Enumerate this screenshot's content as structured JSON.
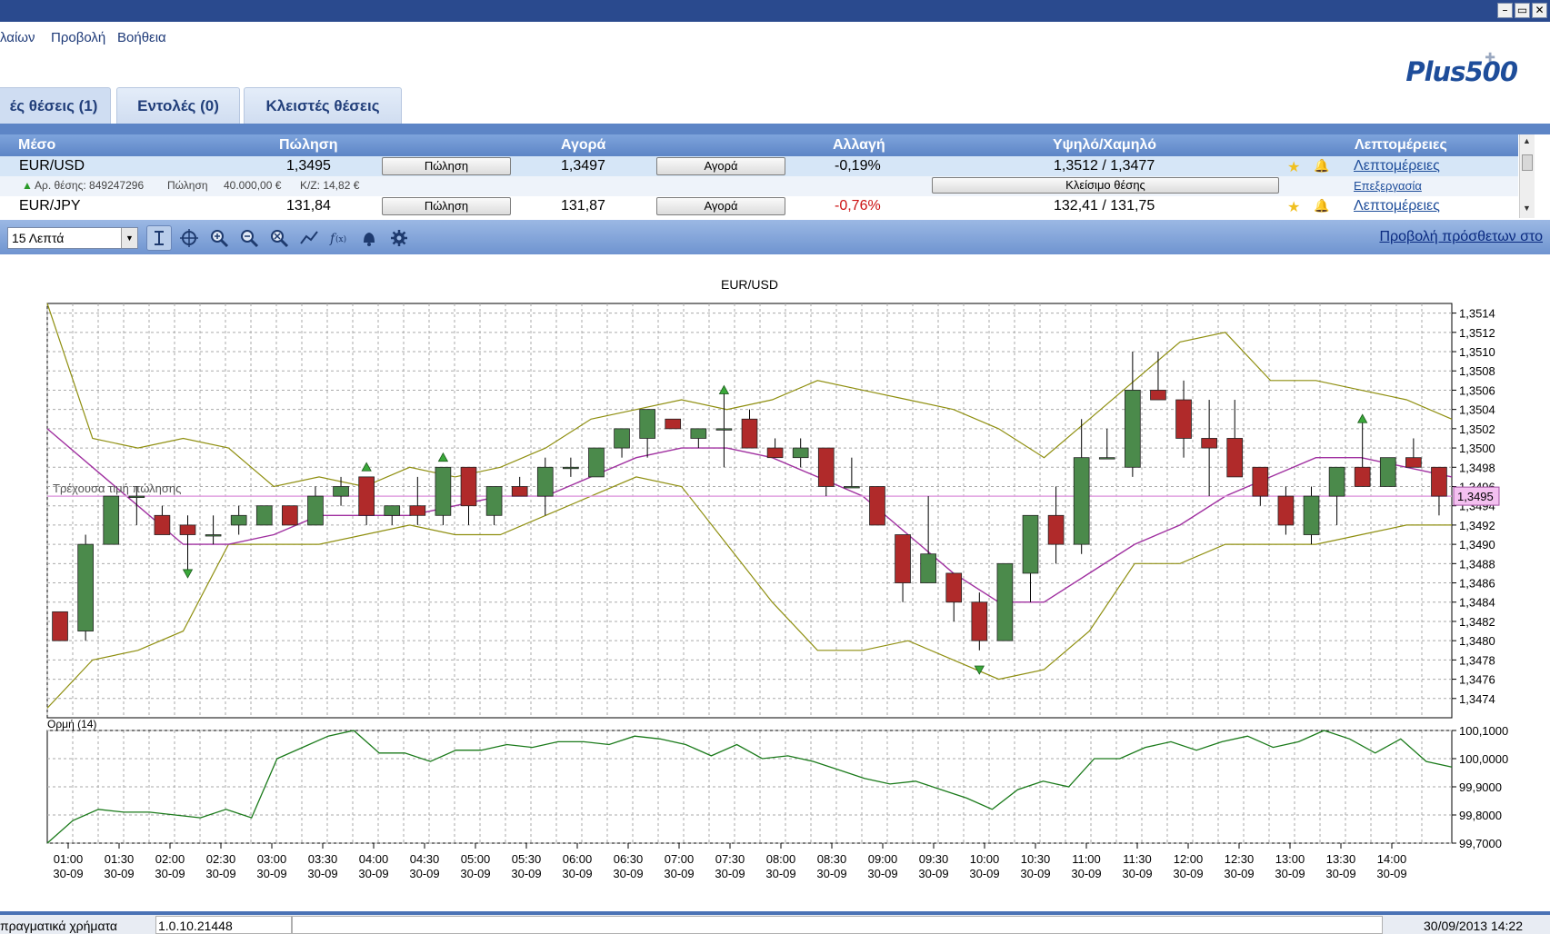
{
  "window": {
    "minimize": "–",
    "restore": "▭",
    "close": "✕"
  },
  "menu": {
    "items": [
      "λαίων",
      "Προβολή",
      "Βοήθεια"
    ]
  },
  "logo": {
    "text": "Plus500",
    "cross": "✚"
  },
  "tabs": [
    {
      "label": "ές θέσεις (1)"
    },
    {
      "label": "Εντολές (0)"
    },
    {
      "label": "Κλειστές θέσεις"
    }
  ],
  "grid": {
    "headers": [
      "Μέσο",
      "Πώληση",
      "Αγορά",
      "Αλλαγή",
      "Υψηλό/Χαμηλό",
      "Λεπτομέρειες"
    ],
    "rows": [
      {
        "instrument": "EUR/USD",
        "sell": "1,3495",
        "sell_btn": "Πώληση",
        "buy": "1,3497",
        "buy_btn": "Αγορά",
        "change": "-0,19%",
        "highlow": "1,3512 / 1,3477",
        "details": "Λεπτομέρειες"
      },
      {
        "instrument": "EUR/JPY",
        "sell": "131,84",
        "sell_btn": "Πώληση",
        "buy": "131,87",
        "buy_btn": "Αγορά",
        "change": "-0,76%",
        "highlow": "132,41 / 131,75",
        "details": "Λεπτομέρειες"
      }
    ],
    "position": {
      "id_label": "Αρ. θέσης: 849247296",
      "side": "Πώληση",
      "amount": "40.000,00 €",
      "pnl": "Κ/Ζ: 14,82 €",
      "close_btn": "Κλείσιμο θέσης",
      "edit_link": "Επεξεργασία"
    },
    "change_color": "#cc1111"
  },
  "toolbar": {
    "timeframe": "15 Λεπτά",
    "link": "Προβολή πρόσθετων στο",
    "icons": [
      "cursor-icon",
      "crosshair-icon",
      "zoom-in-icon",
      "zoom-out-icon",
      "zoom-reset-icon",
      "line-chart-icon",
      "function-icon",
      "alert-bell-icon",
      "settings-gear-icon"
    ]
  },
  "chart_data": [
    {
      "type": "candlestick",
      "title": "EUR/USD",
      "current_price_label": "Τρέχουσα τιμή πώλησης",
      "current_price": "1,3495",
      "x_ticks": [
        [
          "01:00",
          "30-09"
        ],
        [
          "01:30",
          "30-09"
        ],
        [
          "02:00",
          "30-09"
        ],
        [
          "02:30",
          "30-09"
        ],
        [
          "03:00",
          "30-09"
        ],
        [
          "03:30",
          "30-09"
        ],
        [
          "04:00",
          "30-09"
        ],
        [
          "04:30",
          "30-09"
        ],
        [
          "05:00",
          "30-09"
        ],
        [
          "05:30",
          "30-09"
        ],
        [
          "06:00",
          "30-09"
        ],
        [
          "06:30",
          "30-09"
        ],
        [
          "07:00",
          "30-09"
        ],
        [
          "07:30",
          "30-09"
        ],
        [
          "08:00",
          "30-09"
        ],
        [
          "08:30",
          "30-09"
        ],
        [
          "09:00",
          "30-09"
        ],
        [
          "09:30",
          "30-09"
        ],
        [
          "10:00",
          "30-09"
        ],
        [
          "10:30",
          "30-09"
        ],
        [
          "11:00",
          "30-09"
        ],
        [
          "11:30",
          "30-09"
        ],
        [
          "12:00",
          "30-09"
        ],
        [
          "12:30",
          "30-09"
        ],
        [
          "13:00",
          "30-09"
        ],
        [
          "13:30",
          "30-09"
        ],
        [
          "14:00",
          "30-09"
        ]
      ],
      "y_ticks": [
        "1,3474",
        "1,3476",
        "1,3478",
        "1,3480",
        "1,3482",
        "1,3484",
        "1,3486",
        "1,3488",
        "1,3490",
        "1,3492",
        "1,3494",
        "1,3496",
        "1,3498",
        "1,3500",
        "1,3502",
        "1,3504",
        "1,3506",
        "1,3508",
        "1,3510",
        "1,3512",
        "1,3514"
      ],
      "ylim": [
        1.3472,
        1.3515
      ],
      "candles": [
        [
          1.3483,
          1.3483,
          1.348,
          1.348
        ],
        [
          1.3481,
          1.3491,
          1.348,
          1.349
        ],
        [
          1.349,
          1.3495,
          1.349,
          1.3495
        ],
        [
          1.3495,
          1.3496,
          1.3492,
          1.3495
        ],
        [
          1.3493,
          1.3494,
          1.3491,
          1.3491
        ],
        [
          1.3492,
          1.3493,
          1.3487,
          1.3491
        ],
        [
          1.3491,
          1.3493,
          1.349,
          1.3491
        ],
        [
          1.3492,
          1.3494,
          1.3491,
          1.3493
        ],
        [
          1.3492,
          1.3494,
          1.3492,
          1.3494
        ],
        [
          1.3494,
          1.3494,
          1.3492,
          1.3492
        ],
        [
          1.3492,
          1.3496,
          1.3492,
          1.3495
        ],
        [
          1.3495,
          1.3497,
          1.3494,
          1.3496
        ],
        [
          1.3497,
          1.3497,
          1.3492,
          1.3493
        ],
        [
          1.3493,
          1.3494,
          1.3492,
          1.3494
        ],
        [
          1.3494,
          1.3497,
          1.3492,
          1.3493
        ],
        [
          1.3493,
          1.3498,
          1.3492,
          1.3498
        ],
        [
          1.3498,
          1.3498,
          1.3492,
          1.3494
        ],
        [
          1.3493,
          1.3496,
          1.3492,
          1.3496
        ],
        [
          1.3496,
          1.3497,
          1.3495,
          1.3495
        ],
        [
          1.3495,
          1.3499,
          1.3493,
          1.3498
        ],
        [
          1.3498,
          1.3499,
          1.3497,
          1.3498
        ],
        [
          1.3497,
          1.35,
          1.3497,
          1.35
        ],
        [
          1.35,
          1.3502,
          1.3499,
          1.3502
        ],
        [
          1.3501,
          1.3504,
          1.3499,
          1.3504
        ],
        [
          1.3503,
          1.3503,
          1.3502,
          1.3502
        ],
        [
          1.3501,
          1.3502,
          1.35,
          1.3502
        ],
        [
          1.3502,
          1.3506,
          1.3498,
          1.3502
        ],
        [
          1.3503,
          1.3504,
          1.35,
          1.35
        ],
        [
          1.35,
          1.3501,
          1.3499,
          1.3499
        ],
        [
          1.3499,
          1.3501,
          1.3498,
          1.35
        ],
        [
          1.35,
          1.35,
          1.3495,
          1.3496
        ],
        [
          1.3496,
          1.3499,
          1.3496,
          1.3496
        ],
        [
          1.3496,
          1.3496,
          1.3492,
          1.3492
        ],
        [
          1.3491,
          1.3491,
          1.3484,
          1.3486
        ],
        [
          1.3486,
          1.3495,
          1.3486,
          1.3489
        ],
        [
          1.3487,
          1.3487,
          1.3482,
          1.3484
        ],
        [
          1.3484,
          1.3485,
          1.3479,
          1.348
        ],
        [
          1.348,
          1.3488,
          1.348,
          1.3488
        ],
        [
          1.3487,
          1.3493,
          1.3484,
          1.3493
        ],
        [
          1.3493,
          1.3496,
          1.3488,
          1.349
        ],
        [
          1.349,
          1.3503,
          1.3489,
          1.3499
        ],
        [
          1.3499,
          1.3502,
          1.3499,
          1.3499
        ],
        [
          1.3498,
          1.351,
          1.3497,
          1.3506
        ],
        [
          1.3506,
          1.351,
          1.3505,
          1.3505
        ],
        [
          1.3505,
          1.3507,
          1.3499,
          1.3501
        ],
        [
          1.3501,
          1.3505,
          1.3495,
          1.35
        ],
        [
          1.3501,
          1.3505,
          1.3497,
          1.3497
        ],
        [
          1.3498,
          1.3498,
          1.3494,
          1.3495
        ],
        [
          1.3495,
          1.3496,
          1.3491,
          1.3492
        ],
        [
          1.3491,
          1.3496,
          1.349,
          1.3495
        ],
        [
          1.3495,
          1.3498,
          1.3492,
          1.3498
        ],
        [
          1.3498,
          1.3503,
          1.3496,
          1.3496
        ],
        [
          1.3496,
          1.3499,
          1.3496,
          1.3499
        ],
        [
          1.3499,
          1.3501,
          1.3498,
          1.3498
        ],
        [
          1.3498,
          1.3498,
          1.3493,
          1.3495
        ]
      ],
      "markers": [
        {
          "index": 5,
          "dir": "down",
          "price": 1.3487
        },
        {
          "index": 12,
          "dir": "up",
          "price": 1.3498
        },
        {
          "index": 15,
          "dir": "up",
          "price": 1.3499
        },
        {
          "index": 26,
          "dir": "up",
          "price": 1.3506
        },
        {
          "index": 36,
          "dir": "down",
          "price": 1.3477
        },
        {
          "index": 51,
          "dir": "up",
          "price": 1.3503
        }
      ],
      "bollinger_upper": [
        1.352,
        1.3501,
        1.35,
        1.3501,
        1.35,
        1.3496,
        1.3497,
        1.3496,
        1.3498,
        1.3497,
        1.3498,
        1.35,
        1.3503,
        1.3504,
        1.3505,
        1.3504,
        1.3505,
        1.3507,
        1.3506,
        1.3505,
        1.3504,
        1.3502,
        1.3499,
        1.3503,
        1.3507,
        1.3511,
        1.3512,
        1.3507,
        1.3507,
        1.3506,
        1.3505,
        1.3503
      ],
      "bollinger_middle": [
        1.3502,
        1.3498,
        1.3494,
        1.349,
        1.349,
        1.3491,
        1.3493,
        1.3493,
        1.3493,
        1.3494,
        1.3495,
        1.3495,
        1.3497,
        1.3499,
        1.35,
        1.35,
        1.3499,
        1.3497,
        1.3495,
        1.3491,
        1.3487,
        1.3484,
        1.3484,
        1.3487,
        1.349,
        1.3492,
        1.3495,
        1.3497,
        1.3499,
        1.3499,
        1.3498,
        1.3497
      ],
      "bollinger_lower": [
        1.3473,
        1.3478,
        1.3479,
        1.3481,
        1.349,
        1.349,
        1.349,
        1.3491,
        1.3492,
        1.3491,
        1.3491,
        1.3493,
        1.3495,
        1.3497,
        1.3496,
        1.349,
        1.3484,
        1.3479,
        1.3479,
        1.348,
        1.3478,
        1.3476,
        1.3477,
        1.3481,
        1.3488,
        1.3488,
        1.349,
        1.349,
        1.349,
        1.3491,
        1.3492,
        1.3492
      ],
      "colors": {
        "up": "#4b8a4b",
        "down": "#b02a2a",
        "band": "#8f8f10",
        "middle": "#a030a0",
        "price_line": "#e0a0e0",
        "price_tag": "#f4c0f0"
      }
    },
    {
      "type": "line",
      "title": "Ορμή (14)",
      "y_ticks": [
        "99,7000",
        "99,8000",
        "99,9000",
        "100,0000",
        "100,1000"
      ],
      "ylim": [
        99.7,
        100.1
      ],
      "values": [
        99.7,
        99.78,
        99.82,
        99.81,
        99.81,
        99.8,
        99.79,
        99.82,
        99.79,
        100.0,
        100.04,
        100.08,
        100.1,
        100.02,
        100.02,
        99.99,
        100.03,
        100.03,
        100.05,
        100.04,
        100.06,
        100.06,
        100.05,
        100.08,
        100.07,
        100.05,
        100.01,
        100.05,
        100.0,
        100.01,
        99.99,
        99.96,
        99.93,
        99.91,
        99.92,
        99.89,
        99.86,
        99.82,
        99.89,
        99.92,
        99.9,
        100.0,
        100.0,
        100.04,
        100.06,
        100.03,
        100.06,
        100.08,
        100.04,
        100.06,
        100.1,
        100.07,
        100.02,
        100.07,
        99.99,
        99.97
      ],
      "color": "#1a7a1a"
    }
  ],
  "status": {
    "left": "πραγματικά χρήματα",
    "version": "1.0.10.21448",
    "datetime": "30/09/2013 14:22"
  }
}
